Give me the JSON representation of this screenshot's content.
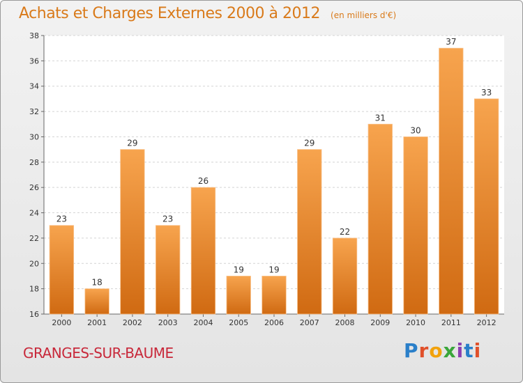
{
  "header": {
    "title": "Achats et Charges Externes 2000 à 2012",
    "unit": "(en milliers d'€)"
  },
  "footer": {
    "commune": "GRANGES-SUR-BAUME",
    "logo": [
      "P",
      "r",
      "o",
      "x",
      "i",
      "t",
      "i"
    ]
  },
  "colors": {
    "bar_top": "#f7a44e",
    "bar_bottom": "#d06a12",
    "title": "#d97a1a",
    "commune": "#c8283a"
  },
  "chart_data": {
    "type": "bar",
    "title": "Achats et Charges Externes 2000 à 2012",
    "subtitle": "(en milliers d'€)",
    "categories": [
      "2000",
      "2001",
      "2002",
      "2003",
      "2004",
      "2005",
      "2006",
      "2007",
      "2008",
      "2009",
      "2010",
      "2011",
      "2012"
    ],
    "values": [
      23,
      18,
      29,
      23,
      26,
      19,
      19,
      29,
      22,
      31,
      30,
      37,
      33
    ],
    "ylim": [
      16,
      38
    ],
    "yticks": [
      16,
      18,
      20,
      22,
      24,
      26,
      28,
      30,
      32,
      34,
      36,
      38
    ],
    "xlabel": "",
    "ylabel": "",
    "grid": true,
    "data_labels": true
  }
}
